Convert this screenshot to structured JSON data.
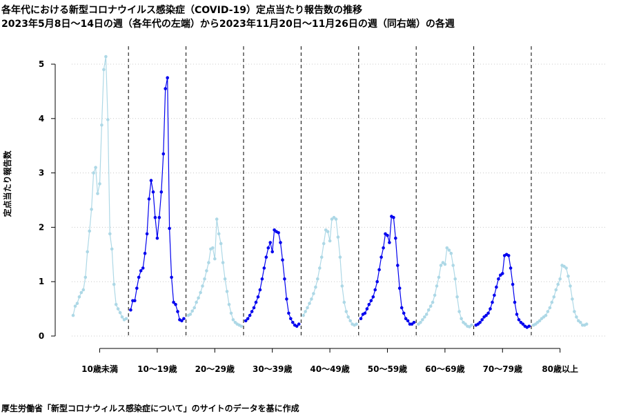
{
  "title_line1": "各年代における新型コロナウイルス感染症（COVID-19）定点当たり報告数の推移",
  "title_line2": "2023年5月8日〜14日の週（各年代の左端）から2023年11月20日〜11月26日の週（同右端）の各週",
  "footnote": "厚生労働省「新型コロナウィルス感染症について」のサイトのデータを基に作成",
  "chart_data": {
    "type": "line",
    "title": "各年代における新型コロナウイルス感染症（COVID-19）定点当たり報告数の推移",
    "ylabel": "定点当たり報告数",
    "ylim": [
      0,
      5.3
    ],
    "yticks": [
      0,
      1,
      2,
      3,
      4,
      5
    ],
    "grid": "horizontal dotted",
    "colors": {
      "light": "#add8e6",
      "dark": "#0000ee",
      "grid": "#c8c8c8"
    },
    "series": [
      {
        "name": "10歳未満",
        "color": "light",
        "values": [
          0.38,
          0.55,
          0.6,
          0.72,
          0.8,
          0.85,
          1.08,
          1.55,
          1.93,
          2.33,
          3.0,
          3.1,
          2.62,
          2.8,
          3.88,
          4.9,
          5.14,
          3.98,
          1.88,
          1.6,
          0.95,
          0.58,
          0.5,
          0.43,
          0.35,
          0.3,
          0.32
        ]
      },
      {
        "name": "10〜19歳",
        "color": "dark",
        "values": [
          0.48,
          0.65,
          0.65,
          0.88,
          1.08,
          1.2,
          1.25,
          1.52,
          1.88,
          2.52,
          2.86,
          2.65,
          2.18,
          1.8,
          2.18,
          2.65,
          3.35,
          4.55,
          4.75,
          1.98,
          1.08,
          0.62,
          0.58,
          0.45,
          0.3,
          0.28,
          0.32
        ]
      },
      {
        "name": "20〜29歳",
        "color": "light",
        "values": [
          0.38,
          0.4,
          0.46,
          0.52,
          0.62,
          0.7,
          0.8,
          0.92,
          1.05,
          1.2,
          1.35,
          1.6,
          1.62,
          1.42,
          2.15,
          1.88,
          1.7,
          1.35,
          1.05,
          0.82,
          0.58,
          0.42,
          0.3,
          0.25,
          0.22,
          0.2,
          0.18
        ]
      },
      {
        "name": "30〜39歳",
        "color": "dark",
        "values": [
          0.28,
          0.32,
          0.38,
          0.45,
          0.52,
          0.62,
          0.72,
          0.85,
          1.05,
          1.25,
          1.45,
          1.62,
          1.72,
          1.55,
          1.95,
          1.92,
          1.9,
          1.72,
          1.4,
          1.05,
          0.68,
          0.42,
          0.32,
          0.25,
          0.2,
          0.18,
          0.22
        ]
      },
      {
        "name": "40〜49歳",
        "color": "light",
        "values": [
          0.38,
          0.45,
          0.52,
          0.6,
          0.68,
          0.78,
          0.9,
          1.05,
          1.25,
          1.45,
          1.7,
          1.95,
          1.92,
          1.75,
          2.15,
          2.18,
          2.15,
          1.82,
          1.45,
          0.92,
          0.62,
          0.45,
          0.35,
          0.28,
          0.22,
          0.2,
          0.22
        ]
      },
      {
        "name": "50〜59歳",
        "color": "dark",
        "values": [
          0.32,
          0.4,
          0.42,
          0.5,
          0.58,
          0.65,
          0.72,
          0.85,
          1.0,
          1.22,
          1.45,
          1.62,
          1.88,
          1.85,
          1.72,
          2.2,
          2.18,
          1.8,
          1.3,
          0.88,
          0.52,
          0.42,
          0.32,
          0.28,
          0.22,
          0.22,
          0.25
        ]
      },
      {
        "name": "60〜69歳",
        "color": "light",
        "values": [
          0.22,
          0.25,
          0.3,
          0.35,
          0.4,
          0.48,
          0.55,
          0.62,
          0.75,
          0.92,
          1.08,
          1.3,
          1.35,
          1.32,
          1.62,
          1.58,
          1.52,
          1.3,
          1.05,
          0.72,
          0.45,
          0.32,
          0.25,
          0.22,
          0.18,
          0.17,
          0.2
        ]
      },
      {
        "name": "70〜79歳",
        "color": "dark",
        "values": [
          0.2,
          0.22,
          0.25,
          0.3,
          0.35,
          0.38,
          0.42,
          0.5,
          0.62,
          0.75,
          0.9,
          1.05,
          1.12,
          1.15,
          1.48,
          1.5,
          1.48,
          1.25,
          0.95,
          0.62,
          0.4,
          0.3,
          0.25,
          0.22,
          0.18,
          0.16,
          0.18
        ]
      },
      {
        "name": "80歳以上",
        "color": "light",
        "values": [
          0.2,
          0.22,
          0.25,
          0.28,
          0.32,
          0.35,
          0.38,
          0.45,
          0.52,
          0.62,
          0.72,
          0.85,
          0.95,
          1.05,
          1.3,
          1.28,
          1.25,
          1.1,
          0.92,
          0.68,
          0.45,
          0.35,
          0.28,
          0.25,
          0.2,
          0.2,
          0.22
        ]
      }
    ]
  }
}
